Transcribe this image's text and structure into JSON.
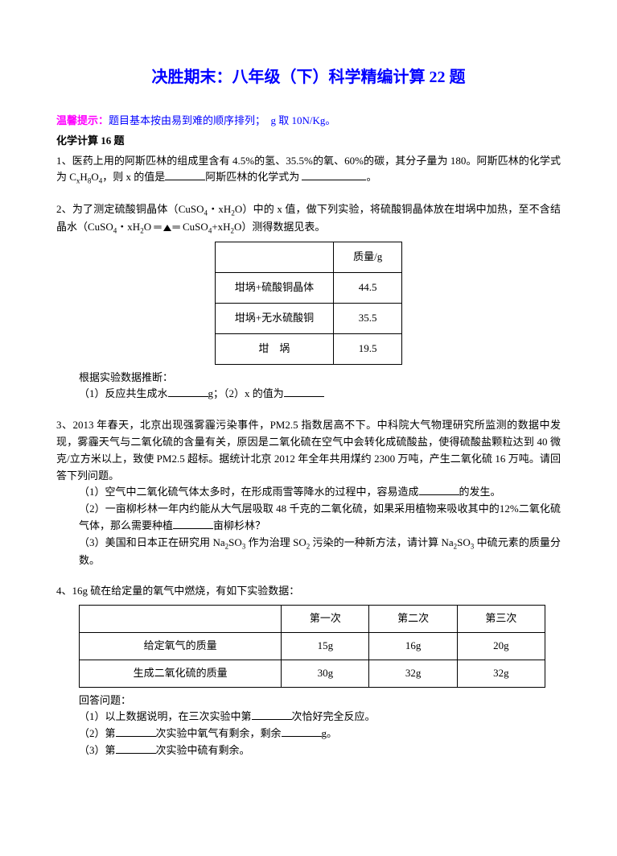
{
  "title": "决胜期末：八年级（下）科学精编计算 22 题",
  "hint": {
    "label": "温馨提示：",
    "content": "题目基本按由易到难的顺序排列；　g 取 10N/Kg。"
  },
  "sectionHeader": "化学计算 16 题",
  "q1": {
    "num": "1、",
    "text1": "医药上用的阿斯匹林的组成里含有 4.5%的氢、35.5%的氧、60%的碳，其分子量为 180。阿斯匹林的化学式为 C",
    "sub1": "x",
    "text2": "H",
    "sub2": "8",
    "text3": "O",
    "sub3": "4",
    "text4": "，则 x 的值是",
    "text5": "阿斯匹林的化学式为",
    "text6": "。"
  },
  "q2": {
    "num": "2、",
    "text1": "为了测定硫酸铜晶体（CuSO",
    "sub1": "4",
    "text2": "・xH",
    "sub2": "2",
    "text3": "O）中的 x 值，做下列实验，将硫酸铜晶体放在坩埚中加热，至不含结晶水（CuSO",
    "sub3": "4",
    "text4": "・xH",
    "sub4": "2",
    "text5": "O ",
    "text6": " CuSO",
    "sub5": "4",
    "text7": "+xH",
    "sub6": "2",
    "text8": "O）测得数据见表。",
    "table": {
      "header": "质量/g",
      "rows": [
        [
          "坩埚+硫酸铜晶体",
          "44.5"
        ],
        [
          "坩埚+无水硫酸铜",
          "35.5"
        ],
        [
          "坩　埚",
          "19.5"
        ]
      ]
    },
    "afterTable1": "根据实验数据推断：",
    "afterTable2": "（1）反应共生成水",
    "afterTable3": "g；（2）x 的值为"
  },
  "q3": {
    "num": "3、",
    "text1": "2013 年春天，北京出现强雾霾污染事件，PM2.5 指数居高不下。中科院大气物理研究所监测的数据中发现，雾霾天气与二氧化硫的含量有关，原因是二氧化硫在空气中会转化成硫酸盐，使得硫酸盐颗粒达到 40 微克/立方米以上，致使 PM2.5 超标。据统计北京 2012 年全年共用煤约 2300 万吨，产生二氧化硫 16 万吨。请回答下列问题。",
    "sub1a": "（1）空气中二氧化硫气体太多时，在形成雨雪等降水的过程中，容易造成",
    "sub1b": "的发生。",
    "sub2a": "（2）一亩柳杉林一年内约能从大气层吸取 48 千克的二氧化硫，如果采用植物来吸收其中的12%二氧化硫气体，那么需要种植",
    "sub2b": "亩柳杉林？",
    "sub3a": "（3）美国和日本正在研究用 Na",
    "sub3sub1": "2",
    "sub3b": "SO",
    "sub3sub2": "3",
    "sub3c": " 作为治理 SO",
    "sub3sub3": "2",
    "sub3d": " 污染的一种新方法，请计算 Na",
    "sub3sub4": "2",
    "sub3e": "SO",
    "sub3sub5": "3",
    "sub3f": " 中硫元素的质量分数。"
  },
  "q4": {
    "num": "4、",
    "text1": "16g 硫在给定量的氧气中燃烧，有如下实验数据：",
    "table": {
      "headers": [
        "",
        "第一次",
        "第二次",
        "第三次"
      ],
      "rows": [
        [
          "给定氧气的质量",
          "15g",
          "16g",
          "20g"
        ],
        [
          "生成二氧化硫的质量",
          "30g",
          "32g",
          "32g"
        ]
      ]
    },
    "after1": "回答问题：",
    "after2a": "（1）以上数据说明，在三次实验中第",
    "after2b": "次恰好完全反应。",
    "after3a": "（2）第",
    "after3b": "次实验中氧气有剩余，剩余",
    "after3c": "g。",
    "after4a": "（3）第",
    "after4b": "次实验中硫有剩余。"
  }
}
